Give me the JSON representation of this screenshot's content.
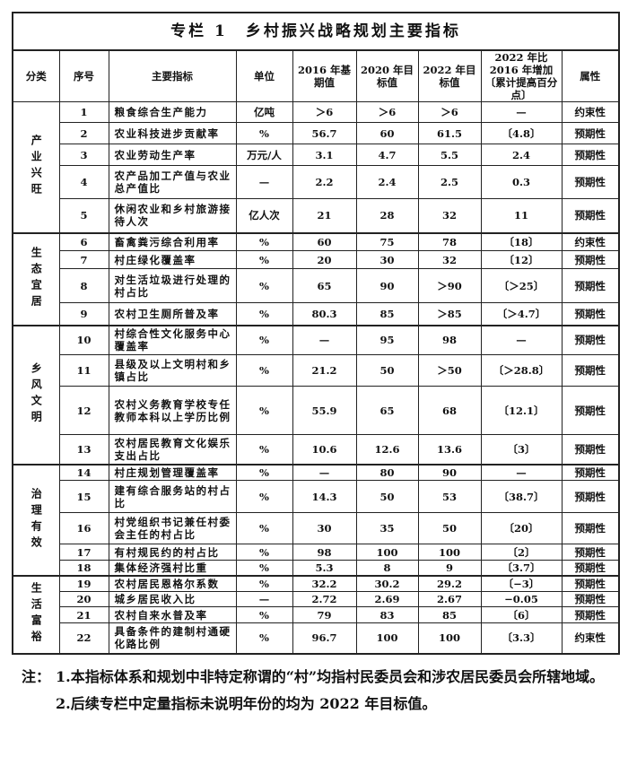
{
  "title": "专栏 1　乡村振兴战略规划主要指标",
  "headers": [
    "分类",
    "序号",
    "主要指标",
    "单位",
    "2016 年基期值",
    "2020 年目标值",
    "2022 年目标值",
    "2022 年比 2016 年增加〔累计提高百分点〕",
    "属性"
  ],
  "categories": [
    {
      "name": "产业兴旺",
      "rows": [
        [
          "1",
          "粮食综合生产能力",
          "亿吨",
          "＞6",
          "＞6",
          "＞6",
          "—",
          "约束性"
        ],
        [
          "2",
          "农业科技进步贡献率",
          "%",
          "56.7",
          "60",
          "61.5",
          "〔4.8〕",
          "预期性"
        ],
        [
          "3",
          "农业劳动生产率",
          "万元/人",
          "3.1",
          "4.7",
          "5.5",
          "2.4",
          "预期性"
        ],
        [
          "4",
          "农产品加工产值与农业总产值比",
          "—",
          "2.2",
          "2.4",
          "2.5",
          "0.3",
          "预期性"
        ],
        [
          "5",
          "休闲农业和乡村旅游接待人次",
          "亿人次",
          "21",
          "28",
          "32",
          "11",
          "预期性"
        ]
      ]
    },
    {
      "name": "生态宜居",
      "rows": [
        [
          "6",
          "畜禽粪污综合利用率",
          "%",
          "60",
          "75",
          "78",
          "〔18〕",
          "约束性"
        ],
        [
          "7",
          "村庄绿化覆盖率",
          "%",
          "20",
          "30",
          "32",
          "〔12〕",
          "预期性"
        ],
        [
          "8",
          "对生活垃圾进行处理的村占比",
          "%",
          "65",
          "90",
          "＞90",
          "〔＞25〕",
          "预期性"
        ],
        [
          "9",
          "农村卫生厕所普及率",
          "%",
          "80.3",
          "85",
          "＞85",
          "〔＞4.7〕",
          "预期性"
        ]
      ]
    },
    {
      "name": "乡风文明",
      "rows": [
        [
          "10",
          "村综合性文化服务中心覆盖率",
          "%",
          "—",
          "95",
          "98",
          "—",
          "预期性"
        ],
        [
          "11",
          "县级及以上文明村和乡镇占比",
          "%",
          "21.2",
          "50",
          "＞50",
          "〔＞28.8〕",
          "预期性"
        ],
        [
          "12",
          "农村义务教育学校专任教师本科以上学历比例",
          "%",
          "55.9",
          "65",
          "68",
          "〔12.1〕",
          "预期性"
        ],
        [
          "13",
          "农村居民教育文化娱乐支出占比",
          "%",
          "10.6",
          "12.6",
          "13.6",
          "〔3〕",
          "预期性"
        ]
      ]
    },
    {
      "name": "治理有效",
      "rows": [
        [
          "14",
          "村庄规划管理覆盖率",
          "%",
          "—",
          "80",
          "90",
          "—",
          "预期性"
        ],
        [
          "15",
          "建有综合服务站的村占比",
          "%",
          "14.3",
          "50",
          "53",
          "〔38.7〕",
          "预期性"
        ],
        [
          "16",
          "村党组织书记兼任村委会主任的村占比",
          "%",
          "30",
          "35",
          "50",
          "〔20〕",
          "预期性"
        ],
        [
          "17",
          "有村规民约的村占比",
          "%",
          "98",
          "100",
          "100",
          "〔2〕",
          "预期性"
        ],
        [
          "18",
          "集体经济强村比重",
          "%",
          "5.3",
          "8",
          "9",
          "〔3.7〕",
          "预期性"
        ]
      ]
    },
    {
      "name": "生活富裕",
      "rows": [
        [
          "19",
          "农村居民恩格尔系数",
          "%",
          "32.2",
          "30.2",
          "29.2",
          "〔−3〕",
          "预期性"
        ],
        [
          "20",
          "城乡居民收入比",
          "—",
          "2.72",
          "2.69",
          "2.67",
          "−0.05",
          "预期性"
        ],
        [
          "21",
          "农村自来水普及率",
          "%",
          "79",
          "83",
          "85",
          "〔6〕",
          "预期性"
        ],
        [
          "22",
          "具备条件的建制村通硬化路比例",
          "%",
          "96.7",
          "100",
          "100",
          "〔3.3〕",
          "约束性"
        ]
      ]
    }
  ],
  "notes": {
    "label": "注：",
    "items": [
      "1.本指标体系和规划中非特定称谓的“村”均指村民委员会和涉农居民委员会所辖地域。",
      "2.后续专栏中定量指标未说明年份的均为 2022 年目标值。"
    ]
  }
}
